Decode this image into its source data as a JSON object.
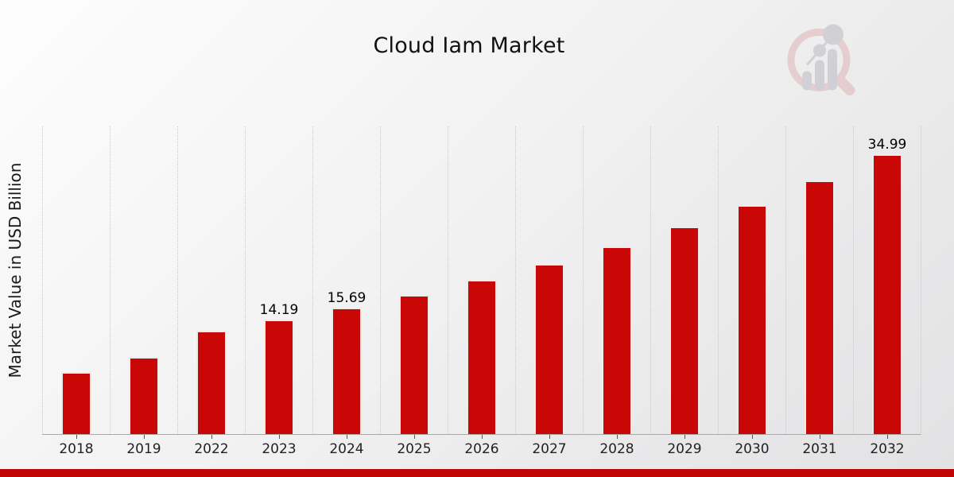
{
  "title": "Cloud Iam Market",
  "ylabel": "Market Value in USD Billion",
  "colors": {
    "bar": "#c90706",
    "bar_edge": "#ececec",
    "accent_strip": "#c10404",
    "gridline": "#c9c9c9",
    "axis_line": "#a9a9a9",
    "watermark_pink": "#dfb3b8",
    "watermark_gray": "#b9bac1"
  },
  "watermark": {
    "name": "magnifier-bar-chart-logo"
  },
  "chart_data": {
    "type": "bar",
    "title": "Cloud Iam Market",
    "xlabel": "",
    "ylabel": "Market Value in USD Billion",
    "categories": [
      "2018",
      "2019",
      "2022",
      "2023",
      "2024",
      "2025",
      "2026",
      "2027",
      "2028",
      "2029",
      "2030",
      "2031",
      "2032"
    ],
    "values": [
      7.6,
      9.5,
      12.85,
      14.19,
      15.69,
      17.35,
      19.18,
      21.2,
      23.44,
      25.91,
      28.65,
      31.66,
      34.99
    ],
    "value_labels": [
      "",
      "",
      "",
      "14.19",
      "15.69",
      "",
      "",
      "",
      "",
      "",
      "",
      "",
      "34.99"
    ],
    "ylim": [
      0,
      38.7
    ],
    "grid": "vertical-dotted",
    "legend": "none"
  }
}
